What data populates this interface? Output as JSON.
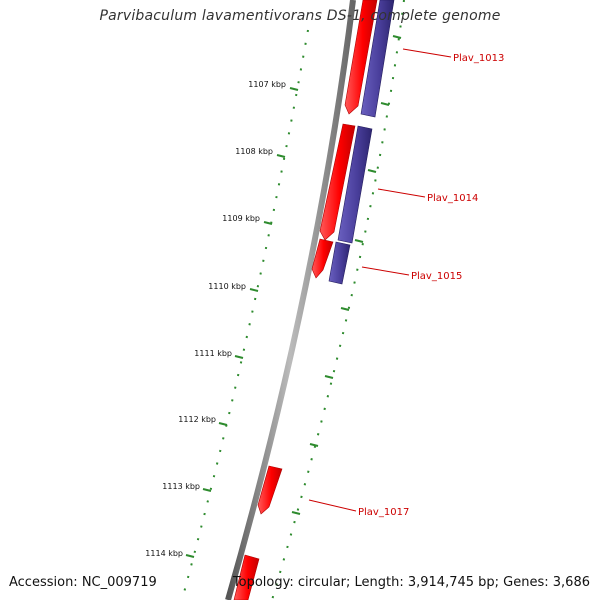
{
  "title": "Parvibaculum lavamentivorans DS-1, complete genome",
  "footer": {
    "accession": "Accession: NC_009719",
    "summary": "Topology: circular; Length: 3,914,745 bp; Genes: 3,686"
  },
  "colors": {
    "backbone": "#7a7a7a",
    "forward_gene": "#ff0000",
    "reverse_gene": "#4a3f9c",
    "ruler": "#2e8b2e",
    "gene_label": "#cc0000",
    "tick_label": "#111111"
  },
  "ruler_ticks": [
    {
      "label": "1107 kbp"
    },
    {
      "label": "1108 kbp"
    },
    {
      "label": "1109 kbp"
    },
    {
      "label": "1110 kbp"
    },
    {
      "label": "1111 kbp"
    },
    {
      "label": "1112 kbp"
    },
    {
      "label": "1113 kbp"
    },
    {
      "label": "1114 kbp"
    }
  ],
  "gene_labels": [
    {
      "name": "Plav_1013"
    },
    {
      "name": "Plav_1014"
    },
    {
      "name": "Plav_1015"
    },
    {
      "name": "Plav_1017"
    }
  ]
}
